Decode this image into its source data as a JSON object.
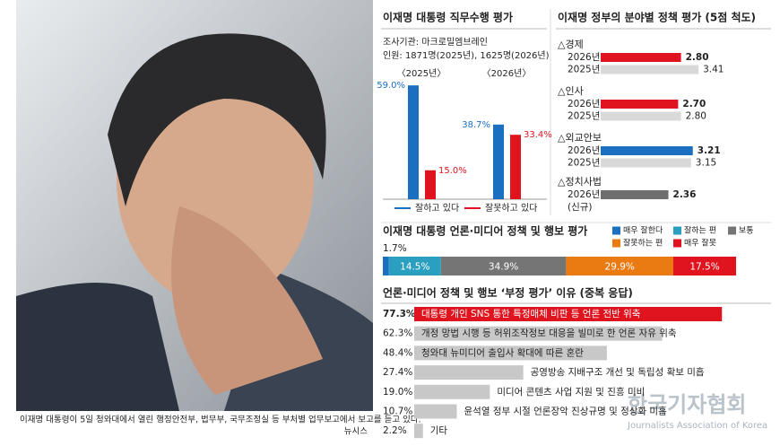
{
  "photo": {
    "caption": "이재명 대통령이 5일 청와대에서 열린 행정안전부, 법무부, 국무조정실 등 부처별 업무보고에서 보고를 듣고 있다.",
    "credit": "뉴시스"
  },
  "watermark": {
    "name": "한국기자협회",
    "english": "Journalists Association of Korea"
  },
  "chart_data": [
    {
      "type": "column",
      "title": "이재명 대통령 직무수행 평가",
      "source": "조사기관: 마크로밀엠브레인",
      "sample": "인원: 1871명(2025년), 1625명(2026년)",
      "categories": [
        "〈2025년〉",
        "〈2026년〉"
      ],
      "series": [
        {
          "name": "잘하고 있다",
          "color": "#1a6fc0",
          "values": [
            59.0,
            38.7
          ],
          "value_labels": [
            "59.0%",
            "38.7%"
          ]
        },
        {
          "name": "잘못하고 있다",
          "color": "#e0141e",
          "values": [
            15.0,
            33.4
          ],
          "value_labels": [
            "15.0%",
            "33.4%"
          ]
        }
      ]
    },
    {
      "type": "groupedbar",
      "title": "이재명 정부의 분야별 정책 평가 (5점 척도)",
      "groups": [
        {
          "name": "△경제",
          "items": [
            {
              "label": "2026년",
              "value": 2.8,
              "value_label": "2.80",
              "color": "#e0141e"
            },
            {
              "label": "2025년",
              "value": 3.41,
              "color": "#d9d9d9"
            }
          ]
        },
        {
          "name": "△인사",
          "items": [
            {
              "label": "2026년",
              "value": 2.7,
              "value_label": "2.70",
              "color": "#e0141e"
            },
            {
              "label": "2025년",
              "value": 2.8,
              "value_label": "2.80",
              "color": "#d9d9d9"
            }
          ]
        },
        {
          "name": "△외교안보",
          "items": [
            {
              "label": "2026년",
              "value": 3.21,
              "color": "#1a6fc0"
            },
            {
              "label": "2025년",
              "value": 3.15,
              "color": "#d9d9d9"
            }
          ]
        },
        {
          "name": "△정치사법",
          "note": "(신규)",
          "items": [
            {
              "label": "2026년",
              "value": 2.36,
              "color": "#6e6e6e"
            }
          ]
        }
      ]
    },
    {
      "type": "stackedbar",
      "title": "이재명 대통령 언론·미디어 정책 및 행보 평가",
      "series": [
        {
          "name": "매우 잘한다",
          "color": "#1a6fc0",
          "value": 1.7,
          "value_label": "1.7%"
        },
        {
          "name": "잘하는 편",
          "color": "#2a9fc0",
          "value": 14.5,
          "value_label": "14.5%"
        },
        {
          "name": "보통",
          "color": "#757575",
          "value": 34.9,
          "value_label": "34.9%"
        },
        {
          "name": "잘못하는 편",
          "color": "#ea7a12",
          "value": 29.9,
          "value_label": "29.9%"
        },
        {
          "name": "매우 잘못",
          "color": "#e0141e",
          "value": 17.5,
          "value_label": "17.5%"
        }
      ]
    },
    {
      "type": "bar",
      "title": "언론·미디어 정책 및 행보 ‘부정 평가’ 이유 (중복 응답)",
      "categories": [
        "대통령 개인 SNS 통한 특정매체 비판 등 언론 전반 위축",
        "개정 망법 시행 등 허위조작정보 대응을 빌미로 한 언론 자유 위축",
        "청와대 뉴미디어 출입사 확대에 따른 혼란",
        "공영방송 지배구조 개선 및 독립성 확보 미흡",
        "미디어 콘텐츠 사업 지원 및 진흥 미비",
        "윤석열 정부 시절 언론장악 진상규명 및 정상화 미흡",
        "기타"
      ],
      "values": [
        77.3,
        62.3,
        48.4,
        27.4,
        19,
        10.7,
        2.2
      ],
      "value_labels": [
        "77.3%",
        "62.3%",
        "48.4%",
        "27.4%",
        "19.0%",
        "10.7%",
        "2.2%"
      ],
      "colors": [
        "#e0141e",
        "#c8c8c8",
        "#c8c8c8",
        "#c8c8c8",
        "#c8c8c8",
        "#c8c8c8",
        "#c8c8c8"
      ]
    }
  ]
}
